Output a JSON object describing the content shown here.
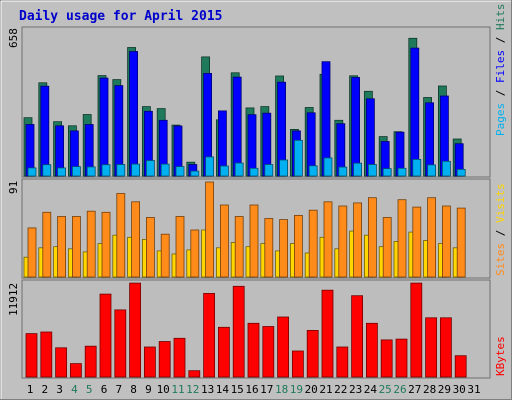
{
  "chart_data": {
    "type": "bar",
    "title": "Daily usage for April 2015",
    "days": [
      "1",
      "2",
      "3",
      "4",
      "5",
      "6",
      "7",
      "8",
      "9",
      "10",
      "11",
      "12",
      "13",
      "14",
      "15",
      "16",
      "17",
      "18",
      "19",
      "20",
      "21",
      "22",
      "23",
      "24",
      "25",
      "26",
      "27",
      "28",
      "29",
      "30",
      "31"
    ],
    "weekend_days": [
      "4",
      "5",
      "11",
      "12",
      "18",
      "19",
      "25",
      "26"
    ],
    "panels": {
      "top": {
        "ymax_label": "658",
        "ymax": 658,
        "legend": [
          {
            "text": "Hits",
            "color": "#1f7a5c"
          },
          {
            "text": "Files",
            "color": "#0000ff"
          },
          {
            "text": "Pages",
            "color": "#00b0f0"
          }
        ],
        "series": [
          {
            "name": "Hits",
            "color": "#1f7a5c",
            "values": [
              274,
              438,
              255,
              236,
              289,
              472,
              453,
              604,
              326,
              317,
              239,
              65,
              560,
              264,
              485,
              320,
              326,
              470,
              219,
              322,
              478,
              262,
              471,
              398,
              185,
              208,
              647,
              369,
              423,
              174,
              0
            ]
          },
          {
            "name": "Files",
            "color": "#0000ff",
            "values": [
              242,
              422,
              236,
              212,
              242,
              460,
              425,
              585,
              304,
              262,
              235,
              54,
              482,
              306,
              465,
              288,
              295,
              441,
              212,
              297,
              537,
              246,
              463,
              363,
              162,
              206,
              601,
              344,
              376,
              152,
              0
            ]
          },
          {
            "name": "Pages",
            "color": "#00b0f0",
            "values": [
              38,
              53,
              38,
              44,
              43,
              53,
              54,
              56,
              73,
              56,
              44,
              23,
              90,
              47,
              61,
              36,
              54,
              75,
              168,
              48,
              85,
              42,
              60,
              54,
              35,
              36,
              78,
              52,
              69,
              31,
              0
            ]
          }
        ]
      },
      "middle": {
        "ymax_label": "91",
        "ymax": 91,
        "legend": [
          {
            "text": "Visits",
            "color": "#ffd600"
          },
          {
            "text": "Sites",
            "color": "#ff8c1a"
          }
        ],
        "series": [
          {
            "name": "Visits",
            "color": "#ffd600",
            "values": [
              19,
              28,
              29,
              27,
              24,
              32,
              40,
              38,
              36,
              25,
              22,
              26,
              45,
              28,
              33,
              29,
              32,
              25,
              32,
              23,
              38,
              27,
              44,
              40,
              29,
              34,
              43,
              35,
              32,
              28,
              0
            ]
          },
          {
            "name": "Sites",
            "color": "#ff8c1a",
            "values": [
              47,
              62,
              58,
              58,
              63,
              62,
              80,
              72,
              57,
              41,
              58,
              45,
              91,
              69,
              58,
              69,
              56,
              55,
              59,
              64,
              72,
              68,
              71,
              76,
              57,
              74,
              67,
              76,
              68,
              66,
              0
            ]
          }
        ]
      },
      "bottom": {
        "ymax_label": "11912",
        "ymax": 11912,
        "legend": [
          {
            "text": "KBytes",
            "color": "#ff0000"
          }
        ],
        "series": [
          {
            "name": "KBytes",
            "color": "#ff0000",
            "values": [
              5500,
              5700,
              3700,
              1700,
              3900,
              10500,
              8500,
              11900,
              3800,
              4500,
              4900,
              800,
              10600,
              6300,
              11500,
              6800,
              6400,
              7600,
              3300,
              5900,
              11000,
              3800,
              10300,
              6800,
              4700,
              4800,
              11900,
              7500,
              7500,
              2700,
              0
            ]
          }
        ]
      }
    }
  }
}
